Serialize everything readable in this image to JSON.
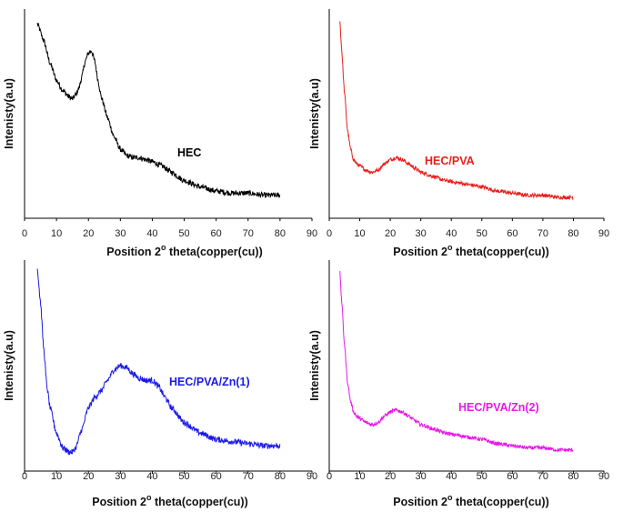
{
  "figure": {
    "common": {
      "xlabel_prefix": "Position 2",
      "xlabel_degree": "o",
      "xlabel_suffix": " theta(copper(cu))",
      "ylabel": "Intenisty(a.u)",
      "xlim": [
        0,
        90
      ],
      "xticks": [
        "0",
        "10",
        "20",
        "30",
        "40",
        "50",
        "60",
        "70",
        "80",
        "90"
      ]
    }
  },
  "chart_data": [
    {
      "type": "line",
      "title": "",
      "series_label": "HEC",
      "color": "#000000",
      "xlabel": "Position 2° theta(copper(cu))",
      "ylabel": "Intenisty(a.u)",
      "xlim": [
        0,
        90
      ],
      "ylim": [
        0,
        100
      ],
      "grid": false,
      "x": [
        4,
        6,
        8,
        10,
        12,
        14,
        15,
        16,
        17,
        18,
        19,
        20,
        21,
        22,
        23,
        24,
        26,
        28,
        30,
        32,
        34,
        36,
        38,
        40,
        43,
        46,
        50,
        55,
        60,
        65,
        70,
        75,
        80
      ],
      "y": [
        93,
        85,
        74,
        66,
        61,
        58,
        57,
        59,
        62,
        68,
        75,
        79,
        80,
        75,
        66,
        58,
        48,
        39,
        33,
        30,
        29,
        29,
        28,
        27,
        25,
        22,
        18,
        15,
        13,
        12,
        12,
        11,
        11
      ],
      "noise": 1.3
    },
    {
      "type": "line",
      "title": "",
      "series_label": "HEC/PVA",
      "color": "#e8201c",
      "xlabel": "Position 2° theta(copper(cu))",
      "ylabel": "Intenisty(a.u)",
      "xlim": [
        0,
        90
      ],
      "ylim": [
        0,
        100
      ],
      "grid": false,
      "x": [
        3.5,
        4,
        5,
        6,
        7,
        8,
        9,
        10,
        12,
        14,
        16,
        18,
        20,
        22,
        24,
        26,
        28,
        30,
        34,
        38,
        42,
        46,
        50,
        55,
        60,
        65,
        70,
        75,
        80
      ],
      "y": [
        94,
        82,
        60,
        42,
        33,
        28,
        26,
        25,
        23,
        22,
        23,
        26,
        28,
        29,
        28,
        26,
        24,
        22,
        20,
        18,
        17,
        16,
        15,
        13,
        12,
        11,
        11,
        10,
        10
      ],
      "noise": 0.9
    },
    {
      "type": "line",
      "title": "",
      "series_label": "HEC/PVA/Zn(1)",
      "color": "#1a1ae6",
      "xlabel": "Position 2° theta(copper(cu))",
      "ylabel": "Intenisty(a.u)",
      "xlim": [
        0,
        90
      ],
      "ylim": [
        0,
        100
      ],
      "grid": false,
      "x": [
        4,
        5,
        6,
        7,
        8,
        10,
        12,
        14,
        15,
        16,
        18,
        20,
        22,
        24,
        26,
        28,
        30,
        32,
        34,
        36,
        38,
        40,
        42,
        44,
        46,
        50,
        55,
        60,
        65,
        70,
        75,
        80
      ],
      "y": [
        96,
        80,
        58,
        40,
        30,
        18,
        11,
        9,
        9,
        11,
        20,
        30,
        35,
        38,
        43,
        48,
        50,
        49,
        46,
        44,
        43,
        43,
        40,
        35,
        30,
        23,
        18,
        15,
        14,
        13,
        12,
        12
      ],
      "noise": 1.4
    },
    {
      "type": "line",
      "title": "",
      "series_label": "HEC/PVA/Zn(2)",
      "color": "#e61ae6",
      "xlabel": "Position 2° theta(copper(cu))",
      "ylabel": "Intenisty(a.u)",
      "xlim": [
        0,
        90
      ],
      "ylim": [
        0,
        100
      ],
      "grid": false,
      "x": [
        3.5,
        4,
        5,
        6,
        7,
        8,
        9,
        10,
        12,
        14,
        16,
        18,
        20,
        22,
        24,
        26,
        28,
        30,
        34,
        38,
        42,
        46,
        50,
        55,
        60,
        65,
        70,
        75,
        80
      ],
      "y": [
        94,
        82,
        60,
        42,
        33,
        28,
        26,
        25,
        23,
        22,
        23,
        26,
        28,
        29,
        28,
        26,
        24,
        22,
        20,
        18,
        17,
        16,
        15,
        13,
        12,
        11,
        11,
        10,
        10
      ],
      "noise": 0.9
    }
  ]
}
